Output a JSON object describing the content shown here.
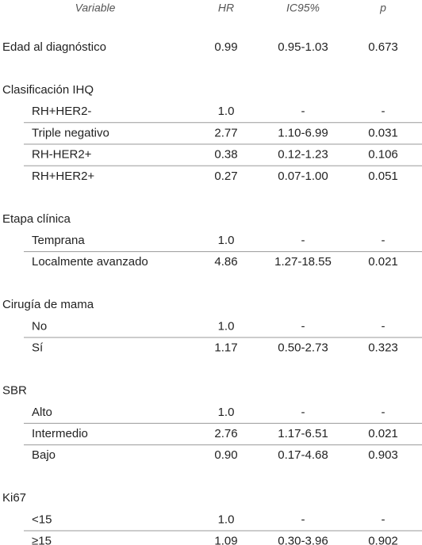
{
  "table": {
    "header": [
      "Variable",
      "HR",
      "IC95%",
      "p"
    ],
    "sections": [
      {
        "label": "Edad al diagnóstico",
        "cells": [
          "0.99",
          "0.95-1.03",
          "0.673"
        ]
      },
      {
        "label": "Clasificación IHQ",
        "rows": [
          {
            "label": "RH+HER2-",
            "cells": [
              "1.0",
              "-",
              "-"
            ]
          },
          {
            "label": "Triple negativo",
            "cells": [
              "2.77",
              "1.10-6.99",
              "0.031"
            ]
          },
          {
            "label": "RH-HER2+",
            "cells": [
              "0.38",
              "0.12-1.23",
              "0.106"
            ]
          },
          {
            "label": "RH+HER2+",
            "cells": [
              "0.27",
              "0.07-1.00",
              "0.051"
            ]
          }
        ]
      },
      {
        "label": "Etapa clínica",
        "rows": [
          {
            "label": "Temprana",
            "cells": [
              "1.0",
              "-",
              "-"
            ]
          },
          {
            "label": "Localmente avanzado",
            "cells": [
              "4.86",
              "1.27-18.55",
              "0.021"
            ]
          }
        ]
      },
      {
        "label": "Cirugía de mama",
        "rows": [
          {
            "label": "No",
            "cells": [
              "1.0",
              "-",
              "-"
            ]
          },
          {
            "label": "Sí",
            "cells": [
              "1.17",
              "0.50-2.73",
              "0.323"
            ]
          }
        ]
      },
      {
        "label": "SBR",
        "rows": [
          {
            "label": "Alto",
            "cells": [
              "1.0",
              "-",
              "-"
            ]
          },
          {
            "label": "Intermedio",
            "cells": [
              "2.76",
              "1.17-6.51",
              "0.021"
            ]
          },
          {
            "label": "Bajo",
            "cells": [
              "0.90",
              "0.17-4.68",
              "0.903"
            ]
          }
        ]
      },
      {
        "label": "Ki67",
        "rows": [
          {
            "label": "<15",
            "cells": [
              "1.0",
              "-",
              "-"
            ]
          },
          {
            "label": "≥15",
            "cells": [
              "1.09",
              "0.30-3.96",
              "0.902"
            ]
          }
        ]
      }
    ]
  }
}
